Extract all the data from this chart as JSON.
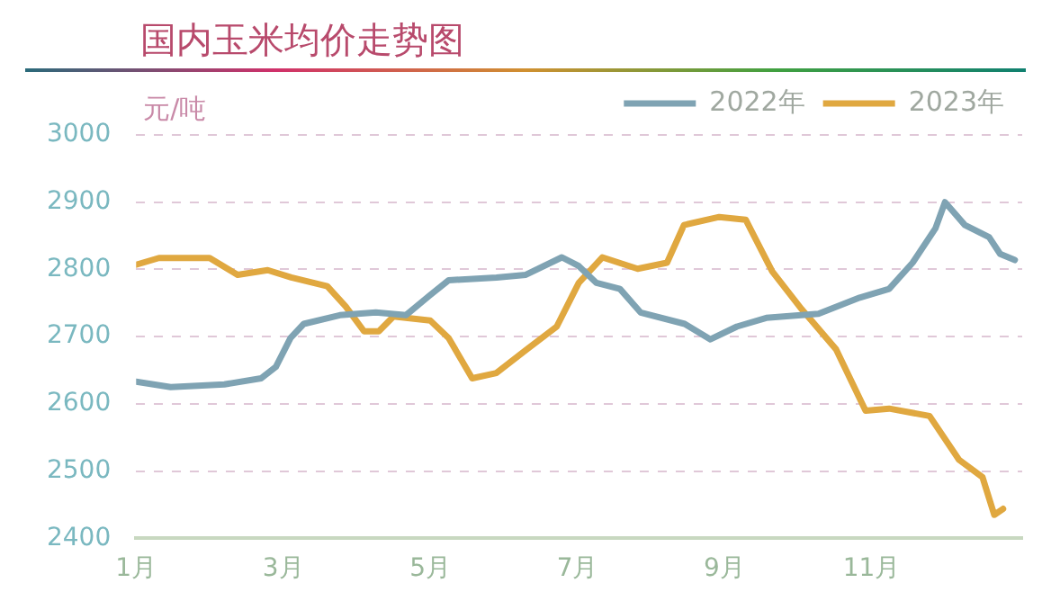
{
  "chart_data": {
    "type": "line",
    "title": "国内玉米均价走势图",
    "ylabel": "元/吨",
    "xlim": [
      1,
      13.05
    ],
    "xticks": [
      {
        "value": 1,
        "label": "1月"
      },
      {
        "value": 3,
        "label": "3月"
      },
      {
        "value": 5,
        "label": "5月"
      },
      {
        "value": 7,
        "label": "7月"
      },
      {
        "value": 9,
        "label": "9月"
      },
      {
        "value": 11,
        "label": "11月"
      }
    ],
    "ylim": [
      2400,
      3000
    ],
    "yticks": [
      2400,
      2500,
      2600,
      2700,
      2800,
      2900,
      3000
    ],
    "grid": "y",
    "legend": "top right",
    "marker": "none",
    "line_style": "solid",
    "series": [
      {
        "name": "2022年",
        "color": "#7fa3b3",
        "x": [
          1,
          1.47,
          2.2,
          2.7,
          2.9,
          3.1,
          3.28,
          3.77,
          4.26,
          4.67,
          5,
          5.25,
          5.9,
          6.3,
          6.79,
          7.02,
          7.26,
          7.58,
          7.86,
          8.46,
          8.81,
          9.17,
          9.57,
          10.28,
          10.84,
          11.24,
          11.56,
          11.87,
          12,
          12.27,
          12.6,
          12.75,
          12.95
        ],
        "values": [
          2633,
          2625,
          2629,
          2638,
          2655,
          2698,
          2719,
          2732,
          2736,
          2732,
          2762,
          2784,
          2788,
          2792,
          2818,
          2805,
          2780,
          2771,
          2736,
          2719,
          2696,
          2715,
          2728,
          2734,
          2758,
          2771,
          2810,
          2861,
          2900,
          2866,
          2848,
          2823,
          2814
        ]
      },
      {
        "name": "2023年",
        "color": "#e0a840",
        "x": [
          1,
          1.31,
          2,
          2.38,
          2.79,
          3.11,
          3.6,
          3.85,
          4.1,
          4.3,
          4.5,
          5,
          5.25,
          5.57,
          5.9,
          6.31,
          6.72,
          7.02,
          7.34,
          7.82,
          8.22,
          8.45,
          8.93,
          9.29,
          9.65,
          10.05,
          10.52,
          10.92,
          11.24,
          11.79,
          12.19,
          12.51,
          12.67,
          12.79
        ],
        "values": [
          2807,
          2817,
          2817,
          2792,
          2799,
          2788,
          2775,
          2745,
          2708,
          2708,
          2730,
          2724,
          2698,
          2638,
          2646,
          2681,
          2715,
          2780,
          2818,
          2801,
          2810,
          2866,
          2878,
          2874,
          2797,
          2741,
          2681,
          2590,
          2593,
          2582,
          2517,
          2491,
          2435,
          2444
        ]
      }
    ]
  }
}
